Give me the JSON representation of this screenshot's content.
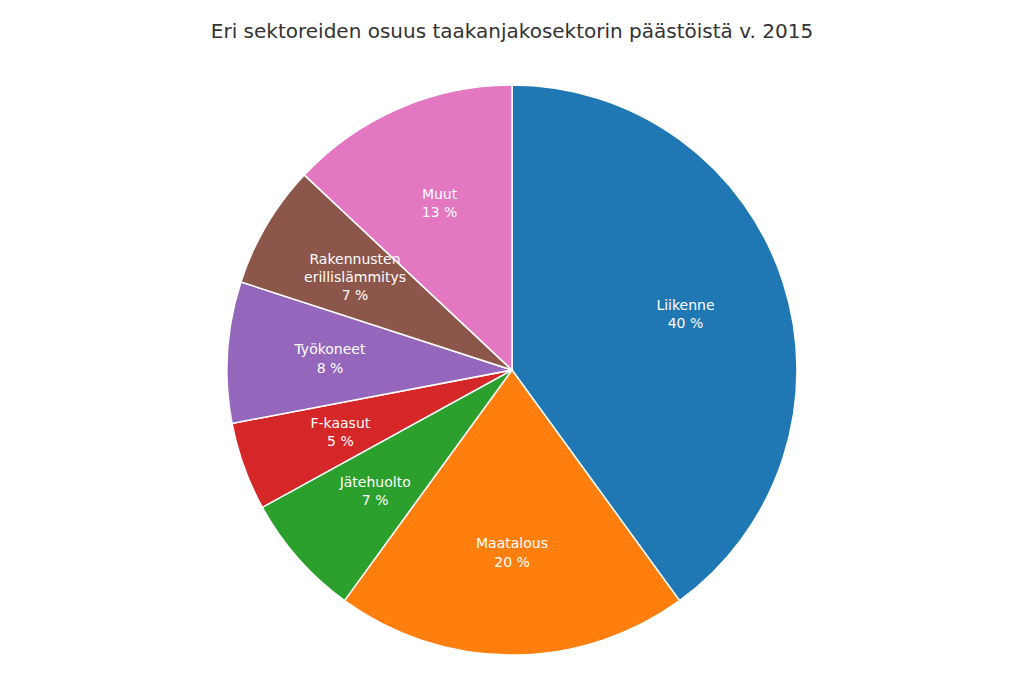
{
  "chart_data": {
    "type": "pie",
    "title": "Eri sektoreiden osuus taakanjakosektorin päästöistä v. 2015",
    "categories": [
      "Liikenne",
      "Maatalous",
      "Jätehuolto",
      "F-kaasut",
      "Työkoneet",
      "Rakennusten\nerillislämmitys",
      "Muut"
    ],
    "values": [
      40,
      20,
      7,
      5,
      8,
      7,
      13
    ],
    "value_labels": [
      "40 %",
      "20 %",
      "7 %",
      "5 %",
      "8 %",
      "7 %",
      "13 %"
    ],
    "data_labels": true
  }
}
